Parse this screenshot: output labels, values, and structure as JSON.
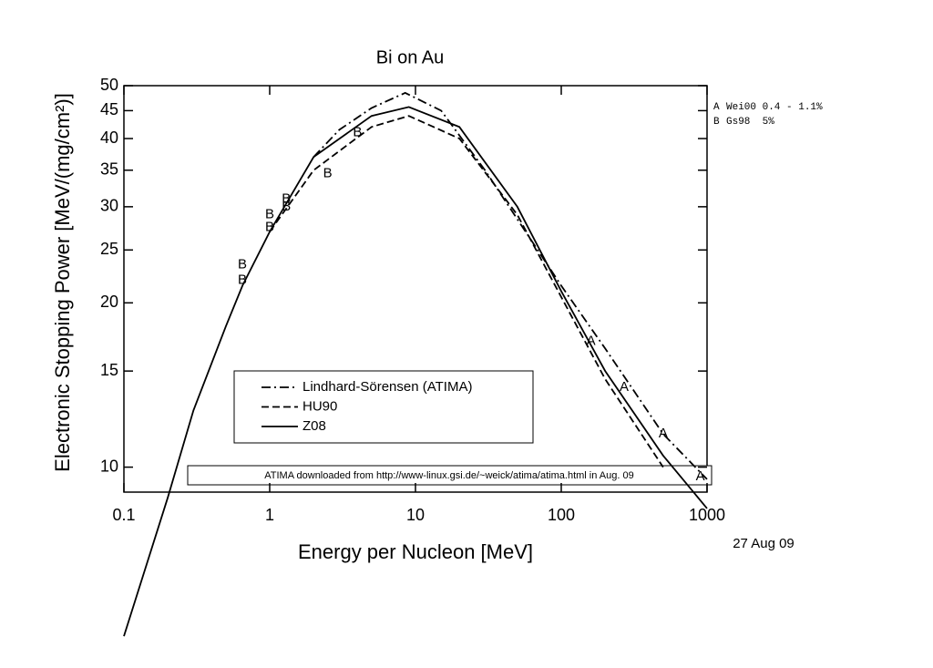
{
  "chart_data": {
    "type": "line",
    "title": "Bi on Au",
    "x_label": "Energy per Nucleon [MeV]",
    "y_label": "Electronic Stopping Power [MeV/(mg/cm²)]",
    "x_scale": "log",
    "y_scale": "log",
    "xlim": [
      0.1,
      1000
    ],
    "ylim": [
      9,
      50
    ],
    "xticks": [
      0.1,
      1,
      10,
      100,
      1000
    ],
    "yticks": [
      10,
      15,
      20,
      25,
      30,
      35,
      40,
      45,
      50
    ],
    "series": [
      {
        "name": "Lindhard-Sörensen (ATIMA)",
        "color": "#000000",
        "dash": "dashdot",
        "x": [
          2,
          3,
          5,
          8.5,
          15,
          30,
          100,
          200,
          500,
          1000
        ],
        "values": [
          37,
          41.5,
          45.5,
          48.5,
          45,
          35,
          21.5,
          16.5,
          11.5,
          9.5
        ]
      },
      {
        "name": "HU90",
        "color": "#000000",
        "dash": "dashed",
        "x": [
          1,
          2,
          5,
          9,
          20,
          50,
          100,
          200,
          500
        ],
        "values": [
          27,
          35,
          42,
          44,
          40,
          29,
          20.5,
          14.5,
          10
        ]
      },
      {
        "name": "Z08",
        "color": "#000000",
        "dash": "solid",
        "x": [
          0.1,
          0.2,
          0.3,
          0.5,
          0.65,
          1,
          2,
          5,
          9,
          20,
          50,
          100,
          200,
          500,
          1000
        ],
        "values": [
          4.9,
          8.8,
          12.7,
          18.1,
          21.5,
          27,
          37,
          44,
          45.7,
          42,
          30,
          21,
          15,
          10.5,
          8.4
        ]
      }
    ],
    "points": [
      {
        "marker": "A",
        "label": "Wei00 0.4 - 1.1%",
        "x": [
          160,
          270,
          500,
          900
        ],
        "values": [
          17,
          14,
          11.5,
          9.6
        ]
      },
      {
        "marker": "B",
        "label": "Gs98  5%",
        "x": [
          0.65,
          0.65,
          1,
          1,
          1.3,
          1.3,
          2.5,
          4
        ],
        "values": [
          23.5,
          22,
          29,
          27.5,
          31,
          30,
          34.5,
          41
        ]
      }
    ],
    "note": "ATIMA downloaded from http://www-linux.gsi.de/~weick/atima/atima.html in Aug. 09",
    "date": "27 Aug 09"
  }
}
